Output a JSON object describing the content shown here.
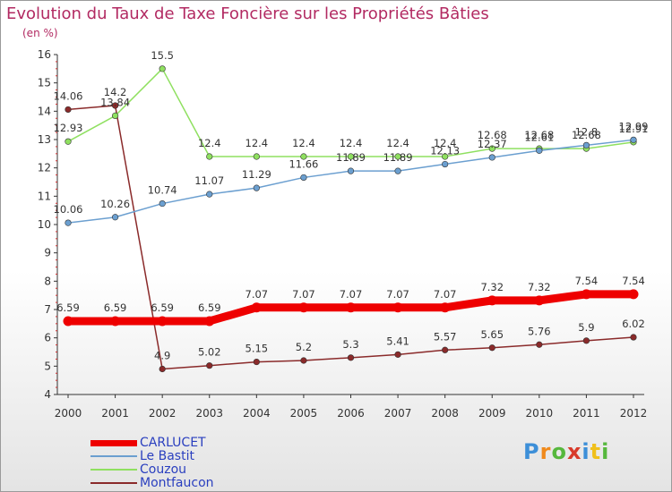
{
  "chart_data": {
    "type": "line",
    "title": "Evolution du Taux de Taxe Foncière sur les Propriétés Bâties",
    "unit_label": "(en %)",
    "xlabel": "",
    "ylabel": "(en %)",
    "categories": [
      "2000",
      "2001",
      "2002",
      "2003",
      "2004",
      "2005",
      "2006",
      "2007",
      "2008",
      "2009",
      "2010",
      "2011",
      "2012"
    ],
    "ylim": [
      4,
      16
    ],
    "yticks": [
      "4",
      "5",
      "6",
      "7",
      "8",
      "9",
      "10",
      "11",
      "12",
      "13",
      "14",
      "15",
      "16"
    ],
    "grid": false,
    "legend_position": "bottom-left",
    "series": [
      {
        "name": "CARLUCET",
        "color": "#ee0000",
        "values": [
          6.59,
          6.59,
          6.59,
          6.59,
          7.07,
          7.07,
          7.07,
          7.07,
          7.07,
          7.32,
          7.32,
          7.54,
          7.54
        ],
        "labels": [
          "6.59",
          "6.59",
          "6.59",
          "6.59",
          "7.07",
          "7.07",
          "7.07",
          "7.07",
          "7.07",
          "7.32",
          "7.32",
          "7.54",
          "7.54"
        ]
      },
      {
        "name": "Le Bastit",
        "color": "#6b9fd0",
        "values": [
          10.06,
          10.26,
          10.74,
          11.07,
          11.29,
          11.66,
          11.89,
          11.89,
          12.13,
          12.37,
          12.61,
          12.8,
          12.99
        ],
        "labels": [
          "10.06",
          "10.26",
          "10.74",
          "11.07",
          "11.29",
          "11.66",
          "11.89",
          "11.89",
          "12.13",
          "12.37",
          "12.61",
          "12.8",
          "12.99"
        ]
      },
      {
        "name": "Couzou",
        "color": "#8fe060",
        "values": [
          12.93,
          13.84,
          15.5,
          12.4,
          12.4,
          12.4,
          12.4,
          12.4,
          12.4,
          12.68,
          12.68,
          12.68,
          12.91
        ],
        "labels": [
          "12.93",
          "13.84",
          "15.5",
          "12.4",
          "12.4",
          "12.4",
          "12.4",
          "12.4",
          "12.4",
          "12.68",
          "12.68",
          "12.68",
          "12.91"
        ]
      },
      {
        "name": "Montfaucon",
        "color": "#8a2a2a",
        "values": [
          14.06,
          14.2,
          4.9,
          5.02,
          5.15,
          5.2,
          5.3,
          5.41,
          5.57,
          5.65,
          5.76,
          5.9,
          6.02
        ],
        "labels": [
          "14.06",
          "14.2",
          "4.9",
          "5.02",
          "5.15",
          "5.2",
          "5.3",
          "5.41",
          "5.57",
          "5.65",
          "5.76",
          "5.9",
          "6.02"
        ]
      }
    ]
  },
  "legend": {
    "items": [
      {
        "label": "CARLUCET"
      },
      {
        "label": "Le Bastit"
      },
      {
        "label": "Couzou"
      },
      {
        "label": "Montfaucon"
      }
    ]
  },
  "branding": {
    "logo_text": "Proxiti",
    "logo_letters": [
      "P",
      "r",
      "o",
      "x",
      "i",
      "t",
      "i"
    ],
    "logo_colors": [
      "#3d8fd8",
      "#f08a1c",
      "#56b83d",
      "#d83a2a",
      "#3d8fd8",
      "#f0c01c",
      "#56b83d"
    ]
  }
}
